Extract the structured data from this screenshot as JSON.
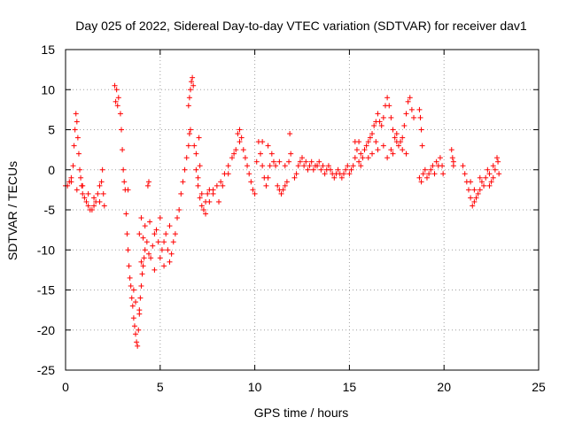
{
  "chart_data": {
    "type": "scatter",
    "title": "Day 025 of 2022, Sidereal Day-to-day VTEC variation (SDTVAR) for receiver dav1",
    "xlabel": "GPS time / hours",
    "ylabel": "SDTVAR / TECUs",
    "xlim": [
      0,
      25
    ],
    "ylim": [
      -25,
      15
    ],
    "xticks": [
      "0",
      "5",
      "10",
      "15",
      "20",
      "25"
    ],
    "yticks": [
      "-25",
      "-20",
      "-15",
      "-10",
      "-5",
      "0",
      "5",
      "10",
      "15"
    ],
    "grid": true,
    "marker": "+",
    "color": "#ff0000",
    "series": [
      {
        "name": "dav1",
        "points": [
          [
            0.0,
            -2.0
          ],
          [
            0.1,
            -2.0
          ],
          [
            0.2,
            -1.5
          ],
          [
            0.3,
            -1.0
          ],
          [
            0.4,
            0.5
          ],
          [
            0.45,
            3.0
          ],
          [
            0.5,
            5.0
          ],
          [
            0.55,
            7.0
          ],
          [
            0.6,
            6.0
          ],
          [
            0.65,
            4.0
          ],
          [
            0.7,
            2.0
          ],
          [
            0.75,
            0.0
          ],
          [
            0.8,
            -1.0
          ],
          [
            0.85,
            -2.0
          ],
          [
            0.9,
            -3.0
          ],
          [
            1.0,
            -3.5
          ],
          [
            1.1,
            -4.0
          ],
          [
            1.2,
            -4.5
          ],
          [
            1.3,
            -5.0
          ],
          [
            1.4,
            -5.0
          ],
          [
            1.5,
            -4.5
          ],
          [
            1.6,
            -4.0
          ],
          [
            1.7,
            -3.0
          ],
          [
            1.8,
            -2.0
          ],
          [
            1.9,
            -1.5
          ],
          [
            2.0,
            -3.0
          ],
          [
            2.05,
            -4.5
          ],
          [
            1.95,
            0.0
          ],
          [
            0.3,
            -1.5
          ],
          [
            0.6,
            -2.5
          ],
          [
            0.9,
            -2.0
          ],
          [
            1.2,
            -3.0
          ],
          [
            1.5,
            -3.5
          ],
          [
            1.8,
            -4.0
          ],
          [
            2.6,
            10.5
          ],
          [
            2.7,
            10.0
          ],
          [
            2.8,
            9.0
          ],
          [
            2.65,
            8.5
          ],
          [
            2.75,
            8.0
          ],
          [
            2.9,
            7.0
          ],
          [
            2.95,
            5.0
          ],
          [
            3.0,
            2.5
          ],
          [
            3.05,
            0.0
          ],
          [
            3.1,
            -1.5
          ],
          [
            3.15,
            -2.5
          ],
          [
            3.2,
            -5.5
          ],
          [
            3.25,
            -8.0
          ],
          [
            3.3,
            -10.0
          ],
          [
            3.35,
            -12.0
          ],
          [
            3.4,
            -13.5
          ],
          [
            3.45,
            -14.5
          ],
          [
            3.5,
            -16.0
          ],
          [
            3.55,
            -17.0
          ],
          [
            3.6,
            -18.5
          ],
          [
            3.65,
            -19.5
          ],
          [
            3.7,
            -20.5
          ],
          [
            3.75,
            -21.5
          ],
          [
            3.8,
            -22.0
          ],
          [
            3.85,
            -20.0
          ],
          [
            3.9,
            -18.0
          ],
          [
            3.95,
            -16.0
          ],
          [
            4.0,
            -14.5
          ],
          [
            4.05,
            -13.0
          ],
          [
            4.1,
            -12.0
          ],
          [
            4.15,
            -11.0
          ],
          [
            4.2,
            -10.0
          ],
          [
            4.3,
            -9.0
          ],
          [
            3.6,
            -15.0
          ],
          [
            3.7,
            -16.5
          ],
          [
            3.9,
            -17.5
          ],
          [
            4.0,
            -11.5
          ],
          [
            4.1,
            -8.5
          ],
          [
            4.2,
            -7.0
          ],
          [
            4.0,
            -6.0
          ],
          [
            3.9,
            -8.0
          ],
          [
            4.4,
            -10.5
          ],
          [
            4.5,
            -11.0
          ],
          [
            4.6,
            -9.5
          ],
          [
            4.7,
            -8.0
          ],
          [
            4.8,
            -7.5
          ],
          [
            4.9,
            -9.0
          ],
          [
            5.0,
            -11.0
          ],
          [
            5.1,
            -10.0
          ],
          [
            5.2,
            -9.0
          ],
          [
            5.3,
            -8.0
          ],
          [
            5.4,
            -10.0
          ],
          [
            5.5,
            -11.5
          ],
          [
            5.6,
            -10.5
          ],
          [
            5.7,
            -9.0
          ],
          [
            5.8,
            -8.0
          ],
          [
            5.9,
            -6.0
          ],
          [
            4.45,
            -6.5
          ],
          [
            5.0,
            -6.0
          ],
          [
            5.5,
            -7.0
          ],
          [
            4.7,
            -12.5
          ],
          [
            5.2,
            -12.0
          ],
          [
            3.3,
            -2.5
          ],
          [
            4.35,
            -2.0
          ],
          [
            4.4,
            -1.5
          ],
          [
            6.0,
            -5.0
          ],
          [
            6.1,
            -3.0
          ],
          [
            6.2,
            -1.5
          ],
          [
            6.3,
            0.0
          ],
          [
            6.4,
            1.5
          ],
          [
            6.5,
            3.0
          ],
          [
            6.55,
            4.5
          ],
          [
            6.6,
            5.0
          ],
          [
            6.5,
            8.0
          ],
          [
            6.55,
            9.0
          ],
          [
            6.6,
            10.0
          ],
          [
            6.65,
            11.0
          ],
          [
            6.7,
            11.5
          ],
          [
            6.75,
            10.5
          ],
          [
            6.8,
            3.0
          ],
          [
            6.9,
            0.0
          ],
          [
            7.0,
            -2.0
          ],
          [
            7.1,
            -3.5
          ],
          [
            7.2,
            -4.5
          ],
          [
            7.3,
            -5.0
          ],
          [
            7.4,
            -4.0
          ],
          [
            7.5,
            -3.0
          ],
          [
            7.6,
            -2.5
          ],
          [
            7.8,
            -2.5
          ],
          [
            8.0,
            -2.0
          ],
          [
            8.2,
            -1.5
          ],
          [
            8.4,
            -0.5
          ],
          [
            8.6,
            0.5
          ],
          [
            8.8,
            1.5
          ],
          [
            9.0,
            2.5
          ],
          [
            9.1,
            4.5
          ],
          [
            9.2,
            5.0
          ],
          [
            9.3,
            4.0
          ],
          [
            9.4,
            2.5
          ],
          [
            9.5,
            1.5
          ],
          [
            9.6,
            0.5
          ],
          [
            9.7,
            -0.5
          ],
          [
            9.8,
            -1.5
          ],
          [
            9.9,
            -2.5
          ],
          [
            10.0,
            -3.0
          ],
          [
            7.0,
            -1.0
          ],
          [
            7.2,
            -3.0
          ],
          [
            7.4,
            -5.5
          ],
          [
            7.6,
            -4.0
          ],
          [
            7.8,
            -3.0
          ],
          [
            8.1,
            -4.0
          ],
          [
            8.3,
            -2.0
          ],
          [
            8.6,
            -0.5
          ],
          [
            8.9,
            2.0
          ],
          [
            9.2,
            3.5
          ],
          [
            6.9,
            2.0
          ],
          [
            7.05,
            4.0
          ],
          [
            7.1,
            0.5
          ],
          [
            10.1,
            1.0
          ],
          [
            10.2,
            3.5
          ],
          [
            10.3,
            2.0
          ],
          [
            10.4,
            0.5
          ],
          [
            10.5,
            -1.0
          ],
          [
            10.6,
            -2.0
          ],
          [
            10.7,
            -1.0
          ],
          [
            10.8,
            0.5
          ],
          [
            10.9,
            2.0
          ],
          [
            11.0,
            1.0
          ],
          [
            10.7,
            3.0
          ],
          [
            10.4,
            3.5
          ],
          [
            11.1,
            0.5
          ],
          [
            11.2,
            -2.0
          ],
          [
            11.3,
            -2.5
          ],
          [
            11.4,
            -3.0
          ],
          [
            11.5,
            -2.5
          ],
          [
            11.6,
            -2.0
          ],
          [
            11.7,
            -1.5
          ],
          [
            11.8,
            1.0
          ],
          [
            11.9,
            2.0
          ],
          [
            11.85,
            4.5
          ],
          [
            11.6,
            0.5
          ],
          [
            11.3,
            1.0
          ],
          [
            12.1,
            -1.0
          ],
          [
            12.2,
            -0.5
          ],
          [
            12.3,
            0.5
          ],
          [
            12.4,
            1.0
          ],
          [
            12.5,
            1.5
          ],
          [
            12.6,
            0.5
          ],
          [
            12.7,
            1.0
          ],
          [
            12.8,
            0.0
          ],
          [
            12.9,
            0.5
          ],
          [
            13.0,
            1.0
          ],
          [
            13.1,
            0.0
          ],
          [
            13.2,
            0.5
          ],
          [
            13.3,
            0.5
          ],
          [
            13.4,
            1.0
          ],
          [
            13.5,
            0.0
          ],
          [
            13.6,
            0.5
          ],
          [
            13.7,
            -0.5
          ],
          [
            13.8,
            0.0
          ],
          [
            13.9,
            0.5
          ],
          [
            14.0,
            0.0
          ],
          [
            14.1,
            -0.5
          ],
          [
            14.2,
            -1.0
          ],
          [
            14.3,
            -0.5
          ],
          [
            14.4,
            0.0
          ],
          [
            14.5,
            -0.5
          ],
          [
            14.6,
            -1.0
          ],
          [
            14.7,
            -0.5
          ],
          [
            14.8,
            0.0
          ],
          [
            14.9,
            0.5
          ],
          [
            15.0,
            -0.5
          ],
          [
            15.1,
            0.0
          ],
          [
            15.2,
            0.5
          ],
          [
            15.3,
            1.5
          ],
          [
            15.4,
            2.5
          ],
          [
            15.5,
            3.5
          ],
          [
            15.6,
            2.0
          ],
          [
            15.7,
            1.5
          ],
          [
            15.8,
            2.5
          ],
          [
            15.9,
            3.0
          ],
          [
            16.0,
            3.5
          ],
          [
            16.1,
            4.0
          ],
          [
            16.2,
            4.5
          ],
          [
            16.3,
            5.5
          ],
          [
            16.4,
            6.0
          ],
          [
            16.5,
            7.0
          ],
          [
            16.6,
            6.0
          ],
          [
            16.7,
            5.5
          ],
          [
            16.8,
            6.5
          ],
          [
            16.9,
            8.0
          ],
          [
            17.0,
            9.0
          ],
          [
            17.1,
            8.0
          ],
          [
            17.2,
            6.5
          ],
          [
            17.3,
            5.0
          ],
          [
            17.4,
            4.0
          ],
          [
            17.5,
            3.5
          ],
          [
            17.6,
            3.0
          ],
          [
            17.7,
            3.5
          ],
          [
            17.8,
            4.0
          ],
          [
            17.9,
            5.5
          ],
          [
            18.0,
            7.0
          ],
          [
            18.1,
            8.5
          ],
          [
            18.2,
            9.0
          ],
          [
            18.3,
            7.5
          ],
          [
            18.4,
            6.5
          ],
          [
            17.0,
            1.5
          ],
          [
            17.2,
            2.5
          ],
          [
            17.5,
            4.5
          ],
          [
            17.8,
            2.5
          ],
          [
            18.0,
            2.0
          ],
          [
            16.5,
            2.5
          ],
          [
            16.0,
            1.5
          ],
          [
            15.6,
            0.5
          ],
          [
            16.2,
            2.0
          ],
          [
            16.8,
            3.0
          ],
          [
            15.3,
            3.5
          ],
          [
            15.5,
            1.0
          ],
          [
            16.4,
            3.5
          ],
          [
            17.3,
            2.0
          ],
          [
            18.7,
            7.5
          ],
          [
            18.75,
            6.5
          ],
          [
            18.8,
            5.0
          ],
          [
            18.85,
            3.0
          ],
          [
            18.7,
            -1.0
          ],
          [
            18.8,
            -1.5
          ],
          [
            18.9,
            -0.5
          ],
          [
            19.0,
            0.0
          ],
          [
            19.1,
            -1.0
          ],
          [
            19.2,
            -0.5
          ],
          [
            19.3,
            0.0
          ],
          [
            19.4,
            0.5
          ],
          [
            19.5,
            -0.5
          ],
          [
            19.6,
            1.0
          ],
          [
            19.7,
            0.5
          ],
          [
            19.8,
            1.5
          ],
          [
            19.9,
            0.5
          ],
          [
            19.95,
            -0.5
          ],
          [
            20.4,
            2.5
          ],
          [
            20.45,
            1.5
          ],
          [
            20.5,
            0.5
          ],
          [
            20.5,
            1.0
          ],
          [
            21.0,
            0.5
          ],
          [
            21.1,
            -0.5
          ],
          [
            21.2,
            -1.5
          ],
          [
            21.3,
            -2.5
          ],
          [
            21.4,
            -3.5
          ],
          [
            21.5,
            -4.5
          ],
          [
            21.6,
            -4.0
          ],
          [
            21.7,
            -3.5
          ],
          [
            21.8,
            -3.0
          ],
          [
            21.9,
            -2.5
          ],
          [
            22.0,
            -1.5
          ],
          [
            22.1,
            -2.0
          ],
          [
            22.2,
            -1.0
          ],
          [
            22.3,
            0.0
          ],
          [
            22.4,
            -0.5
          ],
          [
            22.5,
            -1.5
          ],
          [
            22.6,
            -1.0
          ],
          [
            22.7,
            0.0
          ],
          [
            22.8,
            1.5
          ],
          [
            22.85,
            1.0
          ],
          [
            22.9,
            -0.5
          ],
          [
            21.4,
            -1.5
          ],
          [
            21.6,
            -2.5
          ],
          [
            21.9,
            -1.0
          ],
          [
            22.4,
            -2.0
          ],
          [
            22.6,
            0.5
          ]
        ]
      }
    ]
  }
}
